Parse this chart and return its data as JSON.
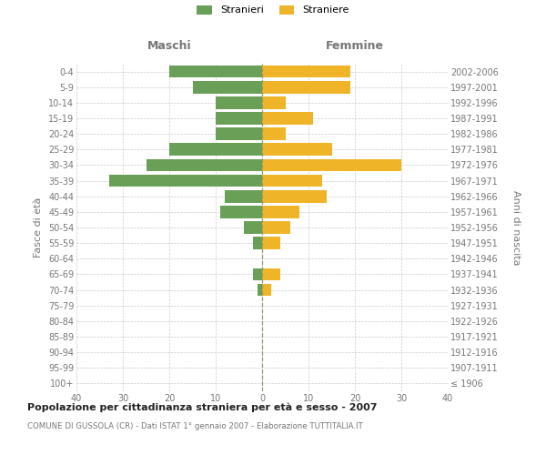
{
  "age_groups": [
    "100+",
    "95-99",
    "90-94",
    "85-89",
    "80-84",
    "75-79",
    "70-74",
    "65-69",
    "60-64",
    "55-59",
    "50-54",
    "45-49",
    "40-44",
    "35-39",
    "30-34",
    "25-29",
    "20-24",
    "15-19",
    "10-14",
    "5-9",
    "0-4"
  ],
  "birth_years": [
    "≤ 1906",
    "1907-1911",
    "1912-1916",
    "1917-1921",
    "1922-1926",
    "1927-1931",
    "1932-1936",
    "1937-1941",
    "1942-1946",
    "1947-1951",
    "1952-1956",
    "1957-1961",
    "1962-1966",
    "1967-1971",
    "1972-1976",
    "1977-1981",
    "1982-1986",
    "1987-1991",
    "1992-1996",
    "1997-2001",
    "2002-2006"
  ],
  "maschi": [
    0,
    0,
    0,
    0,
    0,
    0,
    1,
    2,
    0,
    2,
    4,
    9,
    8,
    33,
    25,
    20,
    10,
    10,
    10,
    15,
    20
  ],
  "femmine": [
    0,
    0,
    0,
    0,
    0,
    0,
    2,
    4,
    0,
    4,
    6,
    8,
    14,
    13,
    30,
    15,
    5,
    11,
    5,
    19,
    19
  ],
  "maschi_color": "#6a9f58",
  "femmine_color": "#f0b429",
  "xlim": 40,
  "title": "Popolazione per cittadinanza straniera per età e sesso - 2007",
  "subtitle": "COMUNE DI GUSSOLA (CR) - Dati ISTAT 1° gennaio 2007 - Elaborazione TUTTITALIA.IT",
  "ylabel_left": "Fasce di età",
  "ylabel_right": "Anni di nascita",
  "header_maschi": "Maschi",
  "header_femmine": "Femmine",
  "legend_maschi": "Stranieri",
  "legend_femmine": "Straniere",
  "bg_color": "#ffffff",
  "grid_color": "#cccccc",
  "text_color": "#777777",
  "title_color": "#222222"
}
